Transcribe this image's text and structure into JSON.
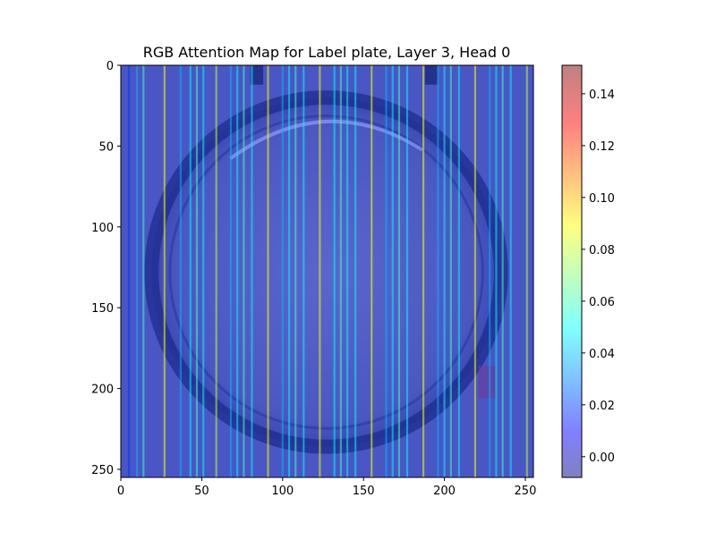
{
  "chart_data": {
    "type": "heatmap",
    "title": "RGB Attention Map for Label plate, Layer 3, Head 0",
    "xlabel": "",
    "ylabel": "",
    "xlim": [
      0,
      255
    ],
    "ylim": [
      255,
      0
    ],
    "x_ticks": [
      0,
      50,
      100,
      150,
      200,
      250
    ],
    "y_ticks": [
      0,
      50,
      100,
      150,
      200,
      250
    ],
    "x_tick_labels": [
      "0",
      "50",
      "100",
      "150",
      "200",
      "250"
    ],
    "y_tick_labels": [
      "0",
      "50",
      "100",
      "150",
      "200",
      "250"
    ],
    "colorbar": {
      "min": -0.008,
      "max": 0.151,
      "ticks": [
        0.0,
        0.02,
        0.04,
        0.06,
        0.08,
        0.1,
        0.12,
        0.14
      ],
      "tick_labels": [
        "0.00",
        "0.02",
        "0.04",
        "0.06",
        "0.08",
        "0.10",
        "0.12",
        "0.14"
      ],
      "colormap": "jet",
      "alpha": 0.5
    },
    "background_image": {
      "description_colors": {
        "base": "#2f3fb0",
        "ring": "#1b2a8c",
        "highlight": "#9aa8ff"
      },
      "plate_center": [
        127,
        128
      ],
      "plate_outer_radius": 108,
      "plate_inner_radius": 100
    },
    "stripes": [
      {
        "x": 5,
        "value": 0.02
      },
      {
        "x": 10,
        "value": 0.04
      },
      {
        "x": 14,
        "value": 0.06
      },
      {
        "x": 27,
        "value": 0.09
      },
      {
        "x": 37,
        "value": 0.04
      },
      {
        "x": 43,
        "value": 0.05
      },
      {
        "x": 47,
        "value": 0.06
      },
      {
        "x": 51,
        "value": 0.05
      },
      {
        "x": 59,
        "value": 0.08
      },
      {
        "x": 68,
        "value": 0.04
      },
      {
        "x": 72,
        "value": 0.05
      },
      {
        "x": 76,
        "value": 0.06
      },
      {
        "x": 81,
        "value": 0.05
      },
      {
        "x": 91,
        "value": 0.09
      },
      {
        "x": 100,
        "value": 0.04
      },
      {
        "x": 104,
        "value": 0.05
      },
      {
        "x": 108,
        "value": 0.06
      },
      {
        "x": 113,
        "value": 0.05
      },
      {
        "x": 123,
        "value": 0.09
      },
      {
        "x": 132,
        "value": 0.05
      },
      {
        "x": 136,
        "value": 0.06
      },
      {
        "x": 140,
        "value": 0.05
      },
      {
        "x": 145,
        "value": 0.05
      },
      {
        "x": 155,
        "value": 0.09
      },
      {
        "x": 164,
        "value": 0.04
      },
      {
        "x": 168,
        "value": 0.05
      },
      {
        "x": 172,
        "value": 0.06
      },
      {
        "x": 177,
        "value": 0.05
      },
      {
        "x": 187,
        "value": 0.09
      },
      {
        "x": 196,
        "value": 0.04
      },
      {
        "x": 200,
        "value": 0.05
      },
      {
        "x": 204,
        "value": 0.06
      },
      {
        "x": 209,
        "value": 0.05
      },
      {
        "x": 219,
        "value": 0.09
      },
      {
        "x": 228,
        "value": 0.04
      },
      {
        "x": 232,
        "value": 0.05
      },
      {
        "x": 236,
        "value": 0.06
      },
      {
        "x": 241,
        "value": 0.05
      },
      {
        "x": 251,
        "value": 0.08
      }
    ]
  }
}
